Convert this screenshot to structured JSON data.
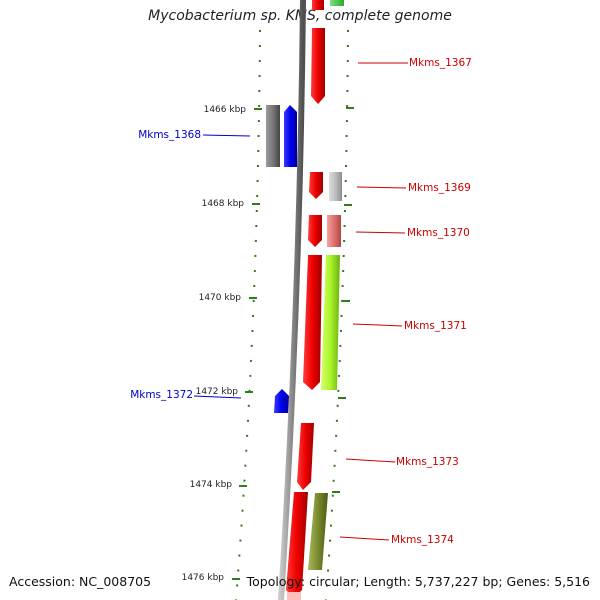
{
  "title": "Mycobacterium sp. KMS, complete genome",
  "footer": {
    "accession": "Accession: NC_008705",
    "topology": "Topology: circular; Length: 5,737,227 bp; Genes: 5,516"
  },
  "colors": {
    "forward_label": "#cc0000",
    "reverse_label": "#0000cc",
    "tick": "#2e7d1a",
    "backbone": "#8a8a8a"
  },
  "ticks": [
    "1466 kbp",
    "1468 kbp",
    "1470 kbp",
    "1472 kbp",
    "1474 kbp",
    "1476 kbp"
  ],
  "genes": [
    {
      "label": "Mkms_1367",
      "strand": "+"
    },
    {
      "label": "Mkms_1368",
      "strand": "-"
    },
    {
      "label": "Mkms_1369",
      "strand": "+"
    },
    {
      "label": "Mkms_1370",
      "strand": "+"
    },
    {
      "label": "Mkms_1371",
      "strand": "+"
    },
    {
      "label": "Mkms_1372",
      "strand": "-"
    },
    {
      "label": "Mkms_1373",
      "strand": "+"
    },
    {
      "label": "Mkms_1374",
      "strand": "+"
    }
  ]
}
